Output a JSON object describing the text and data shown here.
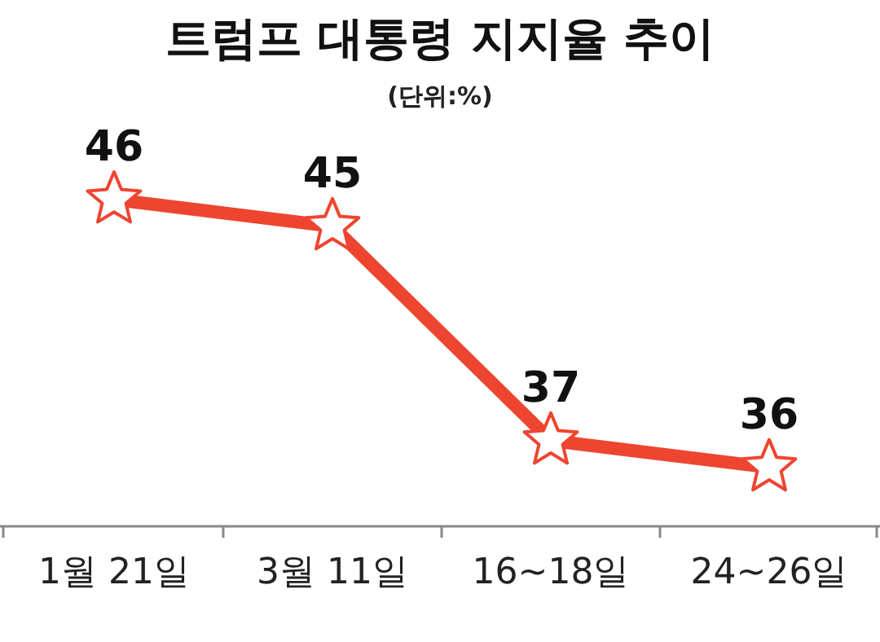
{
  "chart_data": {
    "type": "line",
    "title": "트럼프 대통령 지지율 추이",
    "subtitle": "(단위:%)",
    "categories": [
      "1월 21일",
      "3월 11일",
      "16~18일",
      "24~26일"
    ],
    "series": [
      {
        "color": "#ee4530",
        "values": [
          46,
          45,
          37,
          36
        ]
      }
    ],
    "data_labels": true,
    "marker": "star",
    "line_style": "solid"
  }
}
